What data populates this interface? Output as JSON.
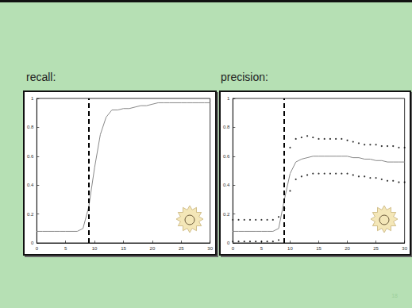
{
  "page_number": "18",
  "chart_data": [
    {
      "type": "line",
      "title": "recall:",
      "x": [
        0,
        1,
        2,
        3,
        4,
        5,
        6,
        7,
        8,
        9,
        10,
        11,
        12,
        13,
        14,
        15,
        16,
        17,
        18,
        19,
        20,
        21,
        22,
        23,
        24,
        25,
        26,
        27,
        28,
        29,
        30
      ],
      "series": [
        {
          "type": "line",
          "color": "#888888",
          "line_style": "solid",
          "values": [
            0.08,
            0.08,
            0.08,
            0.08,
            0.08,
            0.08,
            0.08,
            0.08,
            0.1,
            0.25,
            0.52,
            0.75,
            0.87,
            0.92,
            0.92,
            0.93,
            0.93,
            0.94,
            0.95,
            0.95,
            0.96,
            0.97,
            0.97,
            0.97,
            0.97,
            0.97,
            0.97,
            0.97,
            0.97,
            0.97,
            0.97
          ]
        }
      ],
      "threshold_x": 9,
      "xlim": [
        0,
        30
      ],
      "xticks": [
        0,
        5,
        10,
        15,
        20,
        25,
        30
      ],
      "ylim": [
        0,
        1
      ],
      "yticks": [
        0,
        0.2,
        0.4,
        0.6,
        0.8,
        1
      ],
      "grid": false
    },
    {
      "type": "line",
      "title": "precision:",
      "x": [
        0,
        1,
        2,
        3,
        4,
        5,
        6,
        7,
        8,
        9,
        10,
        11,
        12,
        13,
        14,
        15,
        16,
        17,
        18,
        19,
        20,
        21,
        22,
        23,
        24,
        25,
        26,
        27,
        28,
        29,
        30
      ],
      "series": [
        {
          "type": "line",
          "color": "#888888",
          "line_style": "solid",
          "values": [
            0.08,
            0.08,
            0.08,
            0.08,
            0.08,
            0.08,
            0.08,
            0.08,
            0.1,
            0.3,
            0.48,
            0.56,
            0.58,
            0.59,
            0.6,
            0.6,
            0.6,
            0.6,
            0.6,
            0.6,
            0.6,
            0.59,
            0.59,
            0.58,
            0.58,
            0.57,
            0.57,
            0.56,
            0.56,
            0.56,
            0.56
          ]
        },
        {
          "type": "scatter",
          "color": "#000000",
          "marker": "circle",
          "values": [
            0.16,
            0.16,
            0.16,
            0.16,
            0.16,
            0.16,
            0.16,
            0.16,
            0.18,
            0.24,
            0.66,
            0.72,
            0.73,
            0.74,
            0.73,
            0.72,
            0.72,
            0.72,
            0.72,
            0.72,
            0.71,
            0.7,
            0.69,
            0.68,
            0.68,
            0.68,
            0.67,
            0.67,
            0.67,
            0.66,
            0.66
          ]
        },
        {
          "type": "scatter",
          "color": "#000000",
          "marker": "circle",
          "values": [
            0.01,
            0.01,
            0.01,
            0.01,
            0.01,
            0.01,
            0.01,
            0.01,
            0.02,
            0.12,
            0.36,
            0.44,
            0.46,
            0.47,
            0.48,
            0.48,
            0.48,
            0.48,
            0.48,
            0.48,
            0.48,
            0.47,
            0.46,
            0.46,
            0.45,
            0.45,
            0.44,
            0.43,
            0.43,
            0.42,
            0.42
          ]
        }
      ],
      "threshold_x": 9,
      "xlim": [
        0,
        30
      ],
      "xticks": [
        0,
        5,
        10,
        15,
        20,
        25,
        30
      ],
      "ylim": [
        0,
        1
      ],
      "yticks": [
        0,
        0.2,
        0.4,
        0.6,
        0.8,
        1
      ],
      "grid": false
    }
  ]
}
